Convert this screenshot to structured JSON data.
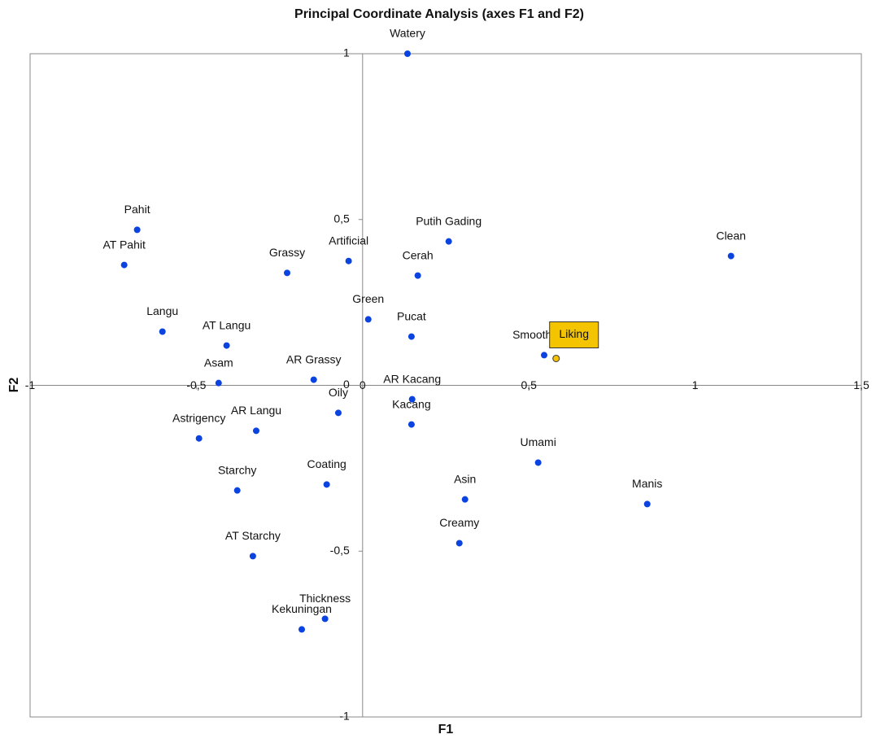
{
  "chart_data": {
    "type": "scatter",
    "title": "Principal Coordinate Analysis (axes F1 and F2)",
    "x_label": "F1",
    "y_label": "F2",
    "xlim": [
      -1,
      1.5
    ],
    "ylim": [
      -1,
      1
    ],
    "xticks": [
      {
        "value": -1,
        "label": "-1"
      },
      {
        "value": -0.5,
        "label": "-0,5"
      },
      0,
      {
        "value": 0.5,
        "label": "0,5"
      },
      1,
      {
        "value": 1.5,
        "label": "1,5"
      }
    ],
    "yticks": [
      {
        "value": -1,
        "label": "-1"
      },
      {
        "value": -0.5,
        "label": "-0,5"
      },
      0,
      {
        "value": 0.5,
        "label": "0,5"
      },
      1
    ],
    "series": [
      {
        "color": "#0a43e0",
        "labels": [
          "Watery",
          "Pahit",
          "AT Pahit",
          "Grassy",
          "Artificial",
          "Putih Gading",
          "Cerah",
          "Clean",
          "Green",
          "Pucat",
          "Langu",
          "AT Langu",
          "Asam",
          "AR Grassy",
          "Oily",
          "Astrigency",
          "AR Langu",
          "Starchy",
          "Coating",
          "AT Starchy",
          "Thickness",
          "Kekuningan",
          "AR Kacang",
          "Kacang",
          "Umami",
          "Asin",
          "Manis",
          "Creamy",
          "Smoothness"
        ],
        "x": [
          0.135,
          -0.678,
          -0.717,
          -0.227,
          -0.042,
          0.259,
          0.166,
          1.108,
          0.017,
          0.147,
          -0.602,
          -0.409,
          -0.433,
          -0.147,
          -0.073,
          -0.492,
          -0.32,
          -0.377,
          -0.108,
          -0.33,
          -0.113,
          -0.183,
          0.149,
          0.147,
          0.528,
          0.308,
          0.856,
          0.291,
          0.546
        ],
        "values": [
          1.0,
          0.469,
          0.363,
          0.339,
          0.375,
          0.434,
          0.331,
          0.39,
          0.199,
          0.147,
          0.162,
          0.12,
          0.007,
          0.017,
          -0.083,
          -0.16,
          -0.137,
          -0.317,
          -0.299,
          -0.515,
          -0.704,
          -0.736,
          -0.042,
          -0.118,
          -0.233,
          -0.344,
          -0.358,
          -0.476,
          0.091
        ]
      },
      {
        "color": "#f5c400",
        "labels": [
          "Liking"
        ],
        "x": [
          0.582
        ],
        "values": [
          0.081
        ]
      }
    ]
  }
}
